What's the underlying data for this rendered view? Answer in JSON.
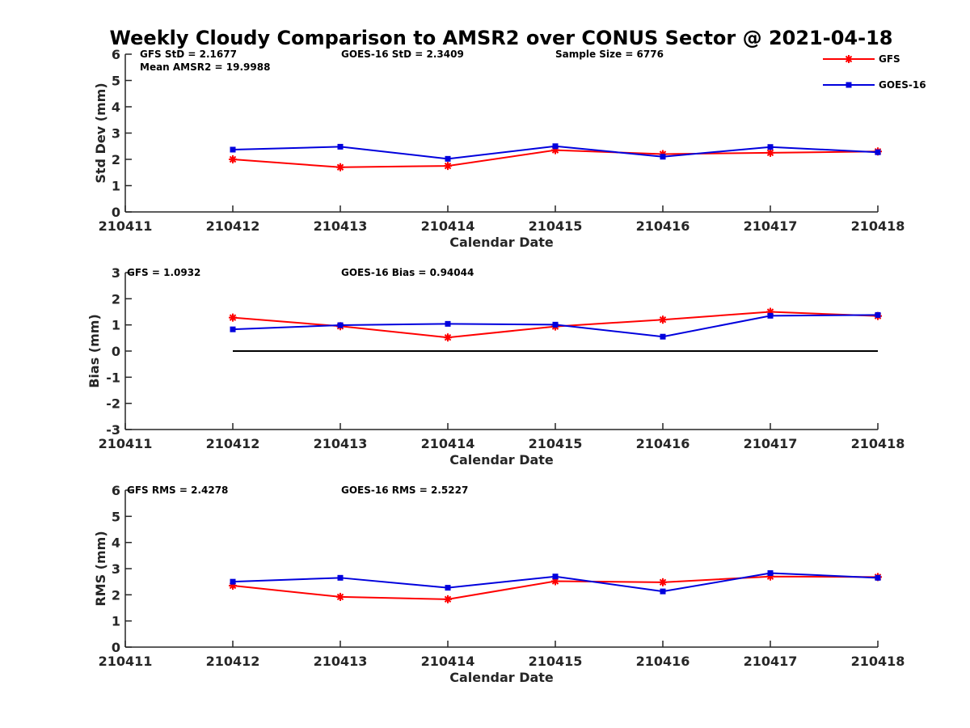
{
  "title": "Weekly Cloudy Comparison to AMSR2 over CONUS Sector @ 2021-04-18",
  "legend": {
    "gfs": "GFS",
    "goes": "GOES-16",
    "position": "top-right"
  },
  "colors": {
    "gfs": "#ff0000",
    "goes": "#0000dd",
    "zero_line": "#000000",
    "axis": "#262626"
  },
  "chart_data": [
    {
      "type": "line",
      "title": "Weekly Cloudy Comparison to AMSR2 over CONUS Sector @ 2021-04-18",
      "xlabel": "Calendar Date",
      "ylabel": "Std Dev (mm)",
      "x_ticks": [
        "210411",
        "210412",
        "210413",
        "210414",
        "210415",
        "210416",
        "210417",
        "210418"
      ],
      "y_ticks": [
        "0",
        "1",
        "2",
        "3",
        "4",
        "5",
        "6"
      ],
      "ylim": [
        0,
        6
      ],
      "x": [
        "210412",
        "210413",
        "210414",
        "210415",
        "210416",
        "210417",
        "210418"
      ],
      "series": [
        {
          "name": "GFS",
          "marker": "asterisk",
          "values": [
            2.0,
            1.7,
            1.75,
            2.35,
            2.2,
            2.25,
            2.3
          ]
        },
        {
          "name": "GOES-16",
          "marker": "square",
          "values": [
            2.37,
            2.48,
            2.02,
            2.5,
            2.1,
            2.47,
            2.27
          ]
        }
      ],
      "annotations": [
        "GFS StD = 2.1677",
        "Mean AMSR2 = 19.9988",
        "GOES-16 StD = 2.3409",
        "Sample Size = 6776"
      ]
    },
    {
      "type": "line",
      "xlabel": "Calendar Date",
      "ylabel": "Bias (mm)",
      "x_ticks": [
        "210411",
        "210412",
        "210413",
        "210414",
        "210415",
        "210416",
        "210417",
        "210418"
      ],
      "y_ticks": [
        "-3",
        "-2",
        "-1",
        "0",
        "1",
        "2",
        "3"
      ],
      "ylim": [
        -3,
        3
      ],
      "x": [
        "210412",
        "210413",
        "210414",
        "210415",
        "210416",
        "210417",
        "210418"
      ],
      "series": [
        {
          "name": "GFS",
          "marker": "asterisk",
          "values": [
            1.28,
            0.95,
            0.52,
            0.94,
            1.2,
            1.5,
            1.34
          ]
        },
        {
          "name": "GOES-16",
          "marker": "square",
          "values": [
            0.83,
            0.99,
            1.04,
            1.01,
            0.55,
            1.35,
            1.38
          ]
        }
      ],
      "zero_line": true,
      "annotations": [
        "GFS = 1.0932",
        "GOES-16 Bias  = 0.94044"
      ]
    },
    {
      "type": "line",
      "xlabel": "Calendar Date",
      "ylabel": "RMS (mm)",
      "x_ticks": [
        "210411",
        "210412",
        "210413",
        "210414",
        "210415",
        "210416",
        "210417",
        "210418"
      ],
      "y_ticks": [
        "0",
        "1",
        "2",
        "3",
        "4",
        "5",
        "6"
      ],
      "ylim": [
        0,
        6
      ],
      "x": [
        "210412",
        "210413",
        "210414",
        "210415",
        "210416",
        "210417",
        "210418"
      ],
      "series": [
        {
          "name": "GFS",
          "marker": "asterisk",
          "values": [
            2.35,
            1.92,
            1.83,
            2.52,
            2.48,
            2.7,
            2.68
          ]
        },
        {
          "name": "GOES-16",
          "marker": "square",
          "values": [
            2.5,
            2.65,
            2.27,
            2.7,
            2.13,
            2.83,
            2.65
          ]
        }
      ],
      "annotations": [
        "GFS RMS = 2.4278",
        "GOES-16 RMS = 2.5227"
      ]
    }
  ]
}
